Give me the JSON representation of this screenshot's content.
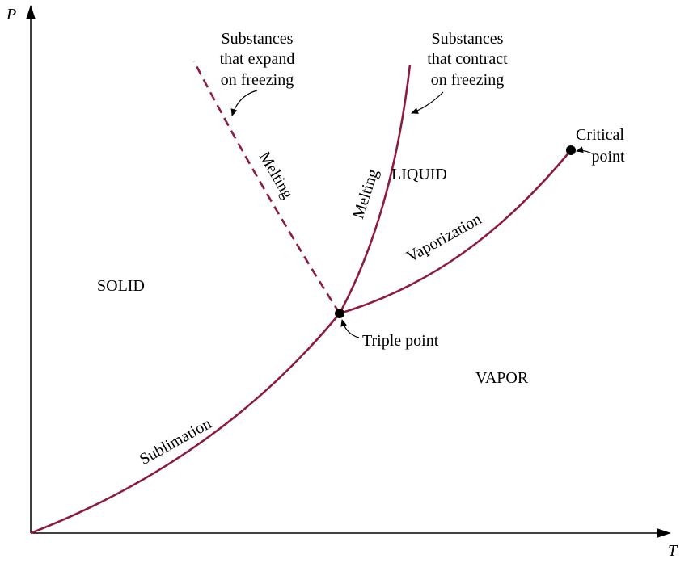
{
  "axes": {
    "y_label": "P",
    "x_label": "T"
  },
  "regions": {
    "solid": "SOLID",
    "liquid": "LIQUID",
    "vapor": "VAPOR"
  },
  "curves": {
    "melting_expand": "Melting",
    "melting_contract": "Melting",
    "vaporization": "Vaporization",
    "sublimation": "Sublimation"
  },
  "annotations": {
    "expand": [
      "Substances",
      "that expand",
      "on freezing"
    ],
    "contract": [
      "Substances",
      "that contract",
      "on freezing"
    ],
    "critical_point": [
      "Critical",
      "point"
    ],
    "triple_point": "Triple point"
  }
}
